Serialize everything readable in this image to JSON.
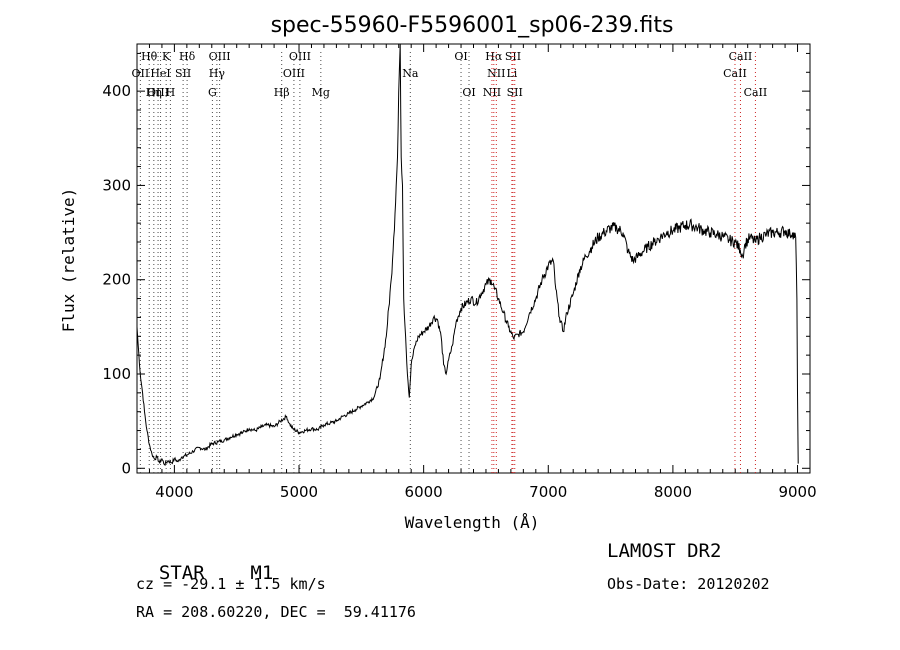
{
  "chart_data": {
    "type": "line",
    "title": "spec-55960-F5596001_sp06-239.fits",
    "xlabel": "Wavelength (Å)",
    "ylabel": "Flux (relative)",
    "xlim": [
      3700,
      9100
    ],
    "ylim": [
      -5,
      450
    ],
    "x_ticks": [
      4000,
      5000,
      6000,
      7000,
      8000,
      9000
    ],
    "y_ticks": [
      0,
      100,
      200,
      300,
      400
    ],
    "grid": false,
    "series": [
      {
        "color": "#000000",
        "points": [
          [
            3700,
            150
          ],
          [
            3715,
            120
          ],
          [
            3730,
            95
          ],
          [
            3745,
            80
          ],
          [
            3760,
            60
          ],
          [
            3780,
            40
          ],
          [
            3800,
            25
          ],
          [
            3820,
            15
          ],
          [
            3840,
            10
          ],
          [
            3860,
            12
          ],
          [
            3880,
            6
          ],
          [
            3900,
            10
          ],
          [
            3920,
            4
          ],
          [
            3950,
            8
          ],
          [
            3980,
            6
          ],
          [
            4000,
            10
          ],
          [
            4030,
            7
          ],
          [
            4060,
            12
          ],
          [
            4100,
            14
          ],
          [
            4150,
            18
          ],
          [
            4200,
            22
          ],
          [
            4250,
            20
          ],
          [
            4300,
            26
          ],
          [
            4350,
            28
          ],
          [
            4400,
            30
          ],
          [
            4450,
            33
          ],
          [
            4500,
            36
          ],
          [
            4550,
            38
          ],
          [
            4600,
            42
          ],
          [
            4650,
            40
          ],
          [
            4700,
            44
          ],
          [
            4750,
            46
          ],
          [
            4800,
            44
          ],
          [
            4850,
            50
          ],
          [
            4900,
            55
          ],
          [
            4920,
            48
          ],
          [
            4950,
            42
          ],
          [
            5000,
            38
          ],
          [
            5050,
            40
          ],
          [
            5100,
            42
          ],
          [
            5150,
            41
          ],
          [
            5200,
            46
          ],
          [
            5250,
            48
          ],
          [
            5300,
            50
          ],
          [
            5350,
            55
          ],
          [
            5400,
            58
          ],
          [
            5450,
            62
          ],
          [
            5500,
            66
          ],
          [
            5550,
            70
          ],
          [
            5600,
            75
          ],
          [
            5650,
            95
          ],
          [
            5700,
            140
          ],
          [
            5740,
            200
          ],
          [
            5770,
            270
          ],
          [
            5790,
            330
          ],
          [
            5805,
            420
          ],
          [
            5812,
            450
          ],
          [
            5820,
            330
          ],
          [
            5830,
            300
          ],
          [
            5840,
            180
          ],
          [
            5855,
            140
          ],
          [
            5870,
            100
          ],
          [
            5885,
            75
          ],
          [
            5900,
            110
          ],
          [
            5930,
            130
          ],
          [
            5960,
            140
          ],
          [
            6000,
            145
          ],
          [
            6040,
            150
          ],
          [
            6080,
            160
          ],
          [
            6110,
            158
          ],
          [
            6140,
            140
          ],
          [
            6160,
            110
          ],
          [
            6180,
            100
          ],
          [
            6200,
            115
          ],
          [
            6230,
            130
          ],
          [
            6260,
            155
          ],
          [
            6300,
            170
          ],
          [
            6340,
            175
          ],
          [
            6380,
            180
          ],
          [
            6420,
            175
          ],
          [
            6460,
            185
          ],
          [
            6500,
            195
          ],
          [
            6540,
            200
          ],
          [
            6570,
            190
          ],
          [
            6600,
            180
          ],
          [
            6640,
            165
          ],
          [
            6680,
            150
          ],
          [
            6720,
            138
          ],
          [
            6760,
            142
          ],
          [
            6800,
            145
          ],
          [
            6850,
            165
          ],
          [
            6900,
            180
          ],
          [
            6950,
            200
          ],
          [
            7000,
            215
          ],
          [
            7040,
            220
          ],
          [
            7060,
            190
          ],
          [
            7090,
            160
          ],
          [
            7120,
            145
          ],
          [
            7150,
            165
          ],
          [
            7200,
            185
          ],
          [
            7250,
            210
          ],
          [
            7300,
            225
          ],
          [
            7350,
            235
          ],
          [
            7400,
            245
          ],
          [
            7450,
            250
          ],
          [
            7500,
            255
          ],
          [
            7550,
            255
          ],
          [
            7600,
            250
          ],
          [
            7640,
            230
          ],
          [
            7680,
            220
          ],
          [
            7720,
            225
          ],
          [
            7760,
            230
          ],
          [
            7800,
            235
          ],
          [
            7850,
            240
          ],
          [
            7900,
            245
          ],
          [
            7950,
            250
          ],
          [
            8000,
            252
          ],
          [
            8050,
            255
          ],
          [
            8100,
            258
          ],
          [
            8150,
            258
          ],
          [
            8200,
            255
          ],
          [
            8250,
            252
          ],
          [
            8300,
            250
          ],
          [
            8350,
            248
          ],
          [
            8400,
            246
          ],
          [
            8450,
            242
          ],
          [
            8500,
            240
          ],
          [
            8540,
            232
          ],
          [
            8560,
            225
          ],
          [
            8580,
            238
          ],
          [
            8620,
            245
          ],
          [
            8660,
            240
          ],
          [
            8700,
            245
          ],
          [
            8750,
            248
          ],
          [
            8800,
            250
          ],
          [
            8850,
            250
          ],
          [
            8900,
            252
          ],
          [
            8940,
            248
          ],
          [
            8960,
            250
          ],
          [
            8985,
            245
          ],
          [
            8995,
            180
          ],
          [
            9000,
            80
          ],
          [
            9005,
            5
          ]
        ]
      }
    ],
    "lines_blue": [
      {
        "label": "Hθ",
        "x": 3798,
        "row": 0
      },
      {
        "label": "K",
        "x": 3934,
        "row": 0
      },
      {
        "label": "Hδ",
        "x": 4102,
        "row": 0
      },
      {
        "label": "OII",
        "x": 3727,
        "row": 1
      },
      {
        "label": "HeI",
        "x": 3889,
        "row": 1
      },
      {
        "label": "SII",
        "x": 4070,
        "row": 1
      },
      {
        "label": "OIII",
        "x": 4363,
        "row": 0
      },
      {
        "label": "Hγ",
        "x": 4341,
        "row": 1
      },
      {
        "label": "G",
        "x": 4305,
        "row": 2
      },
      {
        "label": "OIII",
        "x": 3869,
        "row": 2
      },
      {
        "label": "Hη",
        "x": 3835,
        "row": 2
      },
      {
        "label": "H",
        "x": 3968,
        "row": 2
      },
      {
        "label": "OIII",
        "x": 5007,
        "row": 0
      },
      {
        "label": "OIII",
        "x": 4959,
        "row": 1
      },
      {
        "label": "Hβ",
        "x": 4861,
        "row": 2
      },
      {
        "label": "Mg",
        "x": 5175,
        "row": 2
      },
      {
        "label": "Na",
        "x": 5893,
        "row": 1
      },
      {
        "label": "OI",
        "x": 6300,
        "row": 0
      },
      {
        "label": "OI",
        "x": 6364,
        "row": 2
      }
    ],
    "lines_red": [
      {
        "label": "Hα",
        "x": 6563,
        "row": 0
      },
      {
        "label": "SII",
        "x": 6717,
        "row": 0
      },
      {
        "label": "NII",
        "x": 6583,
        "row": 1
      },
      {
        "label": "Li",
        "x": 6708,
        "row": 1
      },
      {
        "label": "NII",
        "x": 6548,
        "row": 2
      },
      {
        "label": "SII",
        "x": 6731,
        "row": 2
      },
      {
        "label": "CaII",
        "x": 8542,
        "row": 0
      },
      {
        "label": "CaII",
        "x": 8498,
        "row": 1
      },
      {
        "label": "CaII",
        "x": 8662,
        "row": 2
      }
    ],
    "line_colors": {
      "blue": "#4a4a4a",
      "red": "#cc2222"
    }
  },
  "info": {
    "class": "STAR",
    "subclass": "M1",
    "survey": "LAMOST DR2",
    "cz": "cz = -29.1 ± 1.5 km/s",
    "obs_date": "Obs-Date: 20120202",
    "coords": "RA = 208.60220, DEC =  59.41176"
  }
}
